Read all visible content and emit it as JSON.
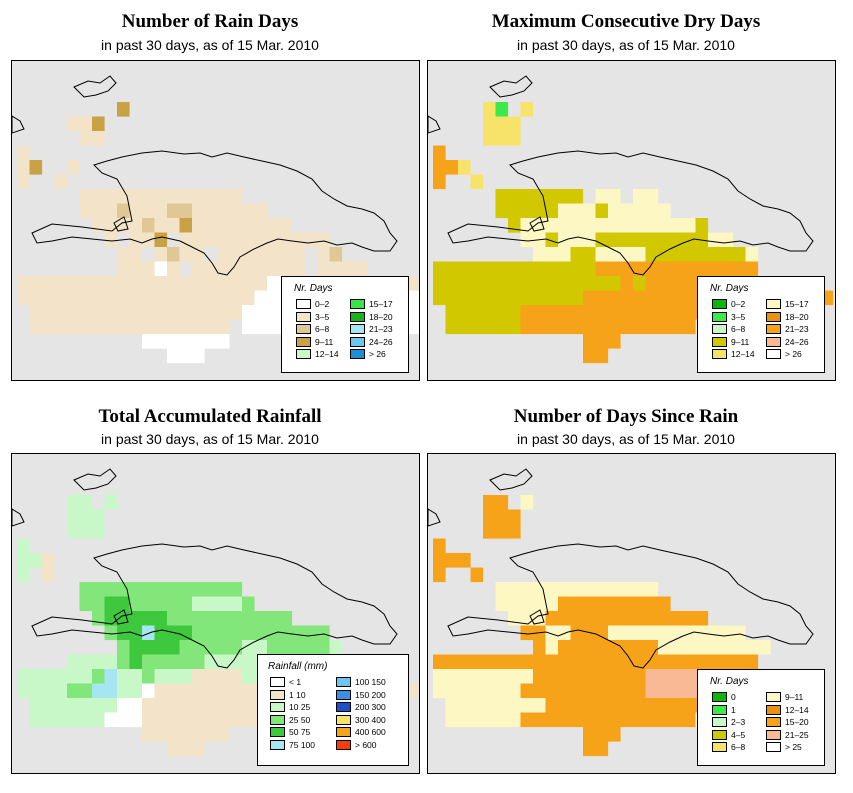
{
  "panels": [
    {
      "id": "rain_days",
      "title": "Number of Rain Days",
      "subtitle": "in past 30 days, as of  15 Mar. 2010",
      "legend": {
        "title": "Nr. Days",
        "items": [
          {
            "label": "0–2",
            "color": "#ffffff"
          },
          {
            "label": "3–5",
            "color": "#f3e3c8"
          },
          {
            "label": "6–8",
            "color": "#e0c896"
          },
          {
            "label": "9–11",
            "color": "#c9a246"
          },
          {
            "label": "12–14",
            "color": "#c8f7c8"
          },
          {
            "label": "15–17",
            "color": "#36e648"
          },
          {
            "label": "18–20",
            "color": "#19b319"
          },
          {
            "label": "21–23",
            "color": "#a6e6f2"
          },
          {
            "label": "24–26",
            "color": "#6dc6ef"
          },
          {
            "label": "> 26",
            "color": "#1c8ed6"
          }
        ]
      }
    },
    {
      "id": "dry_days",
      "title": "Maximum Consecutive Dry Days",
      "subtitle": "in past 30 days, as of  15 Mar. 2010",
      "legend": {
        "title": "Nr. Days",
        "items": [
          {
            "label": "0–2",
            "color": "#0fb50f"
          },
          {
            "label": "3–5",
            "color": "#3de84a"
          },
          {
            "label": "6–8",
            "color": "#c8f7c8"
          },
          {
            "label": "9–11",
            "color": "#d2c800"
          },
          {
            "label": "12–14",
            "color": "#f7e36a"
          },
          {
            "label": "15–17",
            "color": "#fcf7c3"
          },
          {
            "label": "18–20",
            "color": "#e8920f"
          },
          {
            "label": "21–23",
            "color": "#f7a31a"
          },
          {
            "label": "24–26",
            "color": "#f9b994"
          },
          {
            "label": "> 26",
            "color": "#ffffff"
          }
        ]
      }
    },
    {
      "id": "rainfall",
      "title": "Total Accumulated Rainfall",
      "subtitle": "in past 30 days, as of  15 Mar. 2010",
      "legend": {
        "title": "Rainfall (mm)",
        "items": [
          {
            "label": "< 1",
            "color": "#ffffff"
          },
          {
            "label": "1    10",
            "color": "#f3e3c8"
          },
          {
            "label": "10    25",
            "color": "#c8f7c8"
          },
          {
            "label": "25    50",
            "color": "#83e67a"
          },
          {
            "label": "50    75",
            "color": "#3dc83d"
          },
          {
            "label": "75   100",
            "color": "#a6e6f2"
          },
          {
            "label": "100   150",
            "color": "#6dc6ef"
          },
          {
            "label": "150   200",
            "color": "#3a8ee6"
          },
          {
            "label": "200   300",
            "color": "#1e50c8"
          },
          {
            "label": "300   400",
            "color": "#f7e36a"
          },
          {
            "label": "400   600",
            "color": "#f7a31a"
          },
          {
            "label": "> 600",
            "color": "#f53d0f"
          }
        ]
      }
    },
    {
      "id": "days_since_rain",
      "title": "Number of Days Since Rain",
      "subtitle": "in past 30 days, as of  15 Mar. 2010",
      "legend": {
        "title": "Nr. Days",
        "items": [
          {
            "label": "0",
            "color": "#0fb50f"
          },
          {
            "label": "1",
            "color": "#3de84a"
          },
          {
            "label": "2–3",
            "color": "#c8f7c8"
          },
          {
            "label": "4–5",
            "color": "#d2c800"
          },
          {
            "label": "6–8",
            "color": "#f7e36a"
          },
          {
            "label": "9–11",
            "color": "#fcf7c3"
          },
          {
            "label": "12–14",
            "color": "#e8920f"
          },
          {
            "label": "15–20",
            "color": "#f7a31a"
          },
          {
            "label": "21–25",
            "color": "#f9b994"
          },
          {
            "label": "> 25",
            "color": "#ffffff"
          }
        ]
      }
    }
  ]
}
